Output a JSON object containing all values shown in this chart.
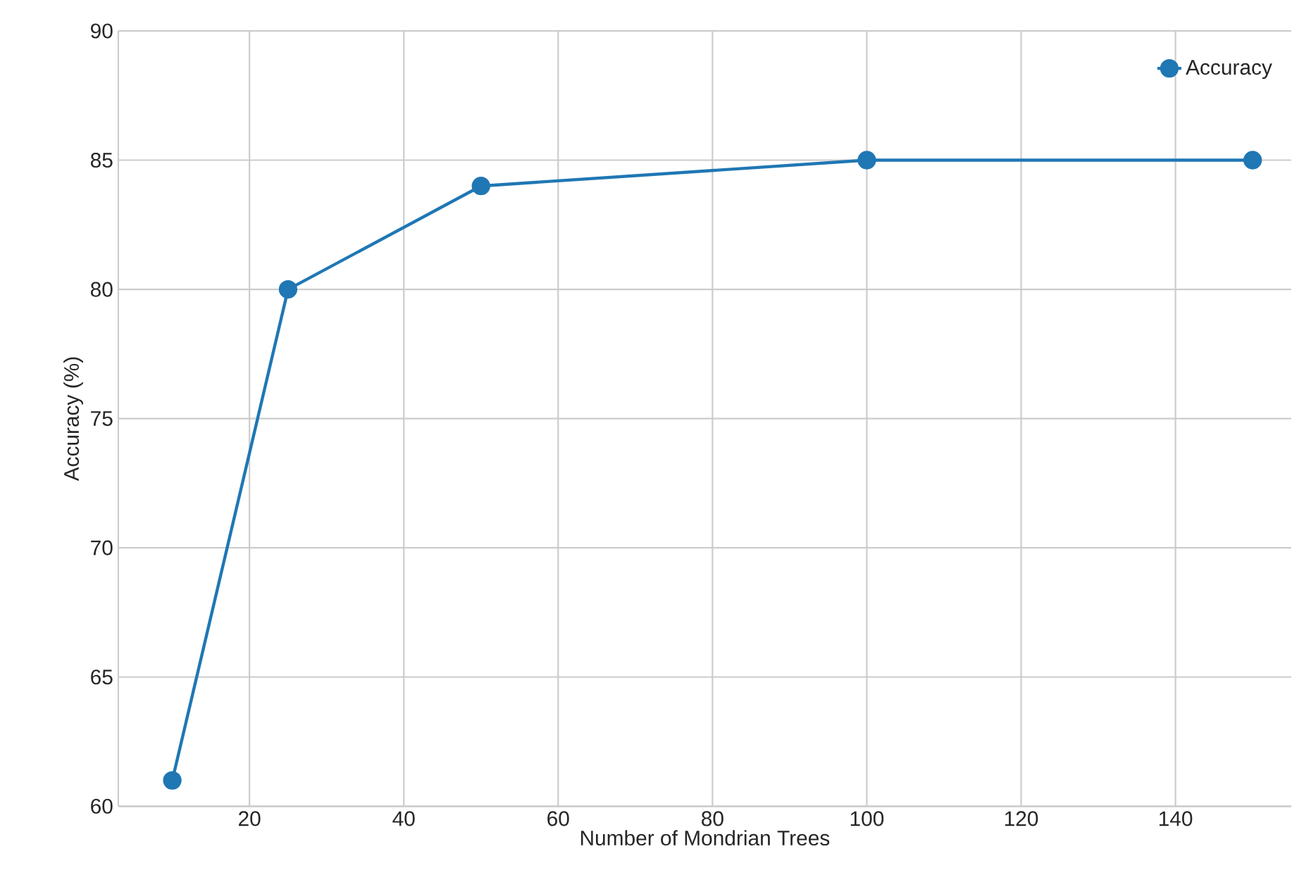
{
  "chart_data": {
    "type": "line",
    "xlabel": "Number of Mondrian Trees",
    "ylabel": "Accuracy (%)",
    "x": [
      10,
      25,
      50,
      100,
      150
    ],
    "series": [
      {
        "name": "Accuracy",
        "color": "#1f77b4",
        "values": [
          61,
          80,
          84,
          85,
          85
        ]
      }
    ],
    "xlim": [
      3,
      155
    ],
    "ylim": [
      60,
      90
    ],
    "xticks": [
      20,
      40,
      60,
      80,
      100,
      120,
      140
    ],
    "yticks": [
      60,
      65,
      70,
      75,
      80,
      85,
      90
    ],
    "grid": true,
    "legend": "top right",
    "marker": "circle",
    "line_style": "solid"
  }
}
